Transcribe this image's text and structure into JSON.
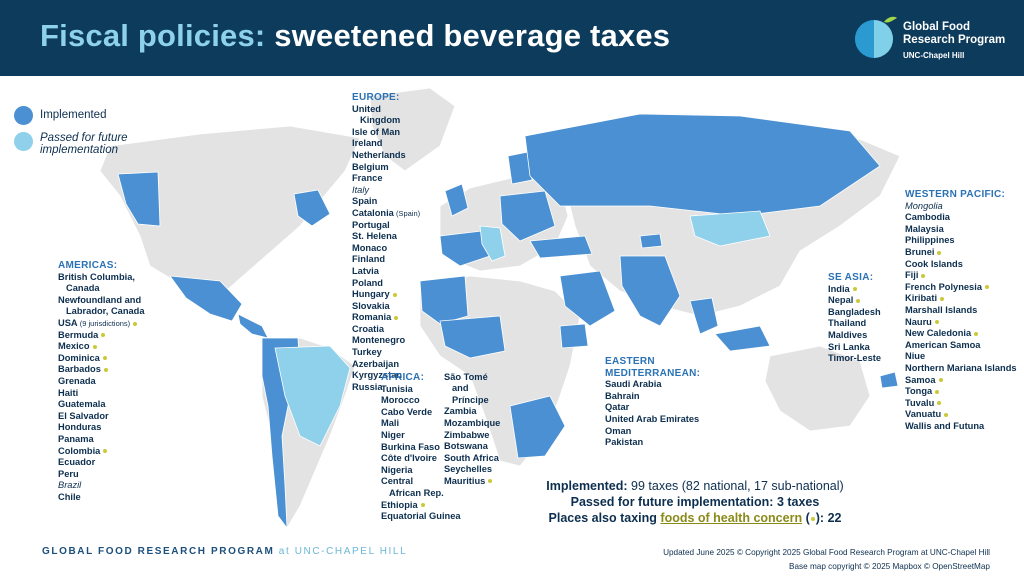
{
  "header": {
    "title_part1": "Fiscal policies:",
    "title_part2": "sweetened beverage taxes",
    "logo_line1": "Global Food",
    "logo_line2": "Research Program",
    "logo_line3": "UNC-Chapel Hill"
  },
  "colors": {
    "header_bg": "#0c3b5c",
    "implemented": "#4a90d2",
    "passed_future": "#8fd0ea",
    "land_other": "#e3e3e3",
    "health_concern_dot": "#c9c93a"
  },
  "legend": {
    "implemented_label": "Implemented",
    "passed_label": "Passed for future implementation"
  },
  "regions": {
    "americas": {
      "header": "AMERICAS:",
      "items": [
        {
          "text": "British Columbia,",
          "dot": false
        },
        {
          "text": "Canada",
          "dot": false,
          "indent": true
        },
        {
          "text": "Newfoundland and",
          "dot": false
        },
        {
          "text": "Labrador, Canada",
          "dot": false,
          "indent": true
        },
        {
          "text": "USA",
          "small": "(9 jurisdictions)",
          "dot": true
        },
        {
          "text": "Bermuda",
          "dot": true
        },
        {
          "text": "Mexico",
          "dot": true
        },
        {
          "text": "Dominica",
          "dot": true
        },
        {
          "text": "Barbados",
          "dot": true
        },
        {
          "text": "Grenada",
          "dot": false
        },
        {
          "text": "Haiti",
          "dot": false
        },
        {
          "text": "Guatemala",
          "dot": false
        },
        {
          "text": "El Salvador",
          "dot": false
        },
        {
          "text": "Honduras",
          "dot": false
        },
        {
          "text": "Panama",
          "dot": false
        },
        {
          "text": "Colombia",
          "dot": true
        },
        {
          "text": "Ecuador",
          "dot": false
        },
        {
          "text": "Peru",
          "dot": false
        },
        {
          "text": "Brazil",
          "dot": false,
          "italic": true
        },
        {
          "text": "Chile",
          "dot": false
        }
      ]
    },
    "europe": {
      "header": "EUROPE:",
      "items": [
        {
          "text": "United",
          "dot": false
        },
        {
          "text": "Kingdom",
          "dot": false,
          "indent": true
        },
        {
          "text": "Isle of Man",
          "dot": false
        },
        {
          "text": "Ireland",
          "dot": false
        },
        {
          "text": "Netherlands",
          "dot": false
        },
        {
          "text": "Belgium",
          "dot": false
        },
        {
          "text": "France",
          "dot": false
        },
        {
          "text": "Italy",
          "dot": false,
          "italic": true
        },
        {
          "text": "Spain",
          "dot": false
        },
        {
          "text": "Catalonia",
          "small": "(Spain)",
          "dot": false
        },
        {
          "text": "Portugal",
          "dot": false
        },
        {
          "text": "St. Helena",
          "dot": false
        },
        {
          "text": "Monaco",
          "dot": false
        },
        {
          "text": "Finland",
          "dot": false
        },
        {
          "text": "Latvia",
          "dot": false
        },
        {
          "text": "Poland",
          "dot": false
        },
        {
          "text": "Hungary",
          "dot": true
        },
        {
          "text": "Slovakia",
          "dot": false
        },
        {
          "text": "Romania",
          "dot": true
        },
        {
          "text": "Croatia",
          "dot": false
        },
        {
          "text": "Montenegro",
          "dot": false
        },
        {
          "text": "Turkey",
          "dot": false
        },
        {
          "text": "Azerbaijan",
          "dot": false
        },
        {
          "text": "Kyrgyzstan",
          "dot": false
        },
        {
          "text": "Russia",
          "dot": false
        }
      ]
    },
    "africa": {
      "header": "AFRICA:",
      "col1": [
        {
          "text": "Tunisia",
          "dot": false
        },
        {
          "text": "Morocco",
          "dot": false
        },
        {
          "text": "Cabo Verde",
          "dot": false
        },
        {
          "text": "Mali",
          "dot": false
        },
        {
          "text": "Niger",
          "dot": false
        },
        {
          "text": "Burkina Faso",
          "dot": false
        },
        {
          "text": "Côte d'Ivoire",
          "dot": false
        },
        {
          "text": "Nigeria",
          "dot": false
        },
        {
          "text": "Central",
          "dot": false
        },
        {
          "text": "African Rep.",
          "dot": false,
          "indent": true
        },
        {
          "text": "Ethiopia",
          "dot": true
        },
        {
          "text": "Equatorial Guinea",
          "dot": false
        }
      ],
      "col2": [
        {
          "text": "São Tomé",
          "dot": false
        },
        {
          "text": "and Príncipe",
          "dot": false,
          "indent": true
        },
        {
          "text": "Zambia",
          "dot": false
        },
        {
          "text": "Mozambique",
          "dot": false
        },
        {
          "text": "Zimbabwe",
          "dot": false
        },
        {
          "text": "Botswana",
          "dot": false
        },
        {
          "text": "South Africa",
          "dot": false
        },
        {
          "text": "Seychelles",
          "dot": false
        },
        {
          "text": "Mauritius",
          "dot": true
        }
      ]
    },
    "eastern_med": {
      "header_line1": "EASTERN",
      "header_line2": "MEDITERRANEAN:",
      "items": [
        {
          "text": "Saudi Arabia",
          "dot": false
        },
        {
          "text": "Bahrain",
          "dot": false
        },
        {
          "text": "Qatar",
          "dot": false
        },
        {
          "text": "United Arab Emirates",
          "dot": false
        },
        {
          "text": "Oman",
          "dot": false
        },
        {
          "text": "Pakistan",
          "dot": false
        }
      ]
    },
    "se_asia": {
      "header": "SE ASIA:",
      "items": [
        {
          "text": "India",
          "dot": true
        },
        {
          "text": "Nepal",
          "dot": true
        },
        {
          "text": "Bangladesh",
          "dot": false
        },
        {
          "text": "Thailand",
          "dot": false
        },
        {
          "text": "Maldives",
          "dot": false
        },
        {
          "text": "Sri Lanka",
          "dot": false
        },
        {
          "text": "Timor-Leste",
          "dot": false
        }
      ]
    },
    "western_pacific": {
      "header": "WESTERN PACIFIC:",
      "items": [
        {
          "text": "Mongolia",
          "dot": false,
          "italic": true
        },
        {
          "text": "Cambodia",
          "dot": false
        },
        {
          "text": "Malaysia",
          "dot": false
        },
        {
          "text": "Philippines",
          "dot": false
        },
        {
          "text": "Brunei",
          "dot": true
        },
        {
          "text": "Cook Islands",
          "dot": false
        },
        {
          "text": "Fiji",
          "dot": true
        },
        {
          "text": "French Polynesia",
          "dot": true
        },
        {
          "text": "Kiribati",
          "dot": true
        },
        {
          "text": "Marshall Islands",
          "dot": false
        },
        {
          "text": "Nauru",
          "dot": true
        },
        {
          "text": "New Caledonia",
          "dot": true
        },
        {
          "text": "American Samoa",
          "dot": false
        },
        {
          "text": "Niue",
          "dot": false
        },
        {
          "text": "Northern Mariana Islands",
          "dot": false
        },
        {
          "text": "Samoa",
          "dot": true
        },
        {
          "text": "Tonga",
          "dot": true
        },
        {
          "text": "Tuvalu",
          "dot": true
        },
        {
          "text": "Vanuatu",
          "dot": true
        },
        {
          "text": "Wallis and Futuna",
          "dot": false
        }
      ]
    }
  },
  "summary": {
    "implemented_label": "Implemented:",
    "implemented_value": "99 taxes (82 national, 17 sub-national)",
    "passed_label": "Passed for future implementation:",
    "passed_value": "3 taxes",
    "also_label": "Places also taxing",
    "also_link": "foods of health concern",
    "also_paren_open": "(",
    "also_paren_close": "):",
    "also_value": "22"
  },
  "footer": {
    "program": "GLOBAL FOOD RESEARCH PROGRAM",
    "program_at": "at UNC-CHAPEL HILL",
    "updated": "Updated June 2025",
    "copyright": "© Copyright 2025 Global Food Research Program at UNC-Chapel Hill",
    "basemap": "Base map copyright © 2025 Mapbox © OpenStreetMap"
  }
}
